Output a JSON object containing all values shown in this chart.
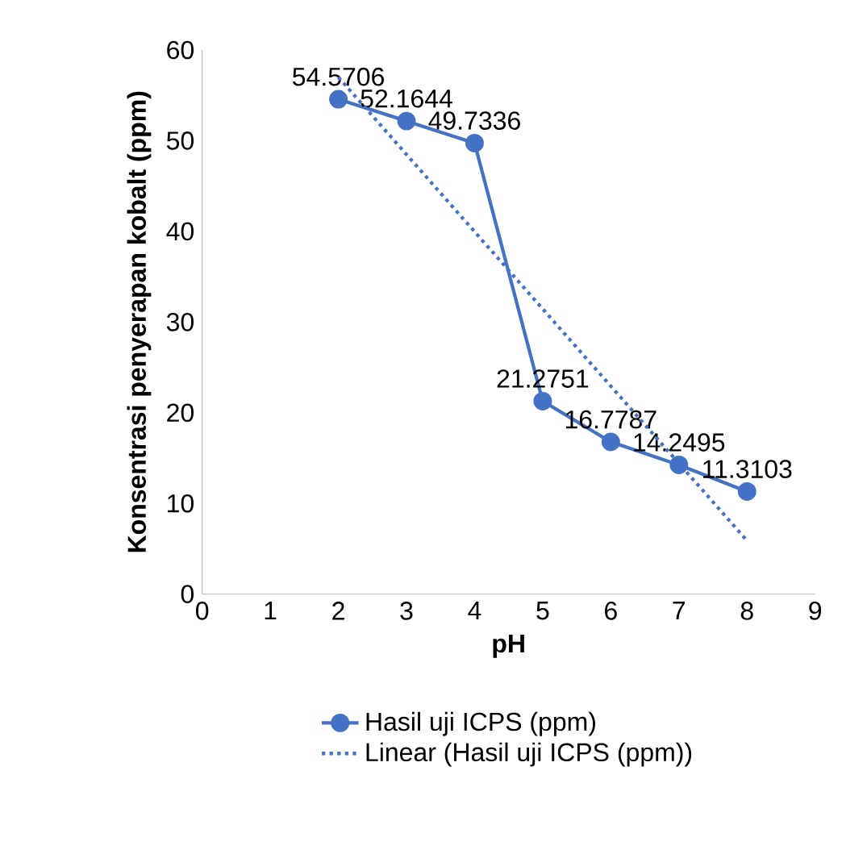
{
  "chart_data": {
    "type": "line",
    "xlabel": "pH",
    "ylabel": "Konsentrasi penyerapan kobalt (ppm)",
    "xlim": [
      0,
      9
    ],
    "xticks": [
      0,
      1,
      2,
      3,
      4,
      5,
      6,
      7,
      8,
      9
    ],
    "ylim": [
      0,
      60
    ],
    "yticks": [
      0,
      10,
      20,
      30,
      40,
      50,
      60
    ],
    "grid": false,
    "legend": "bottom",
    "series": [
      {
        "name": "Hasil uji ICPS (ppm)",
        "color": "#4472c4",
        "marker": "circle",
        "line_style": "solid",
        "x": [
          2,
          3,
          4,
          5,
          6,
          7,
          8
        ],
        "values": [
          54.5706,
          52.1644,
          49.7336,
          21.2751,
          16.7787,
          14.2495,
          11.3103
        ],
        "value_labels": [
          "54.5706",
          "52.1644",
          "49.7336",
          "21.2751",
          "16.7787",
          "14.2495",
          "11.3103"
        ]
      },
      {
        "name": "Linear (Hasil uji ICPS (ppm))",
        "color": "#4472c4",
        "marker": "none",
        "line_style": "dotted",
        "x": [
          2,
          8
        ],
        "values": [
          57.0,
          5.9
        ]
      }
    ]
  }
}
